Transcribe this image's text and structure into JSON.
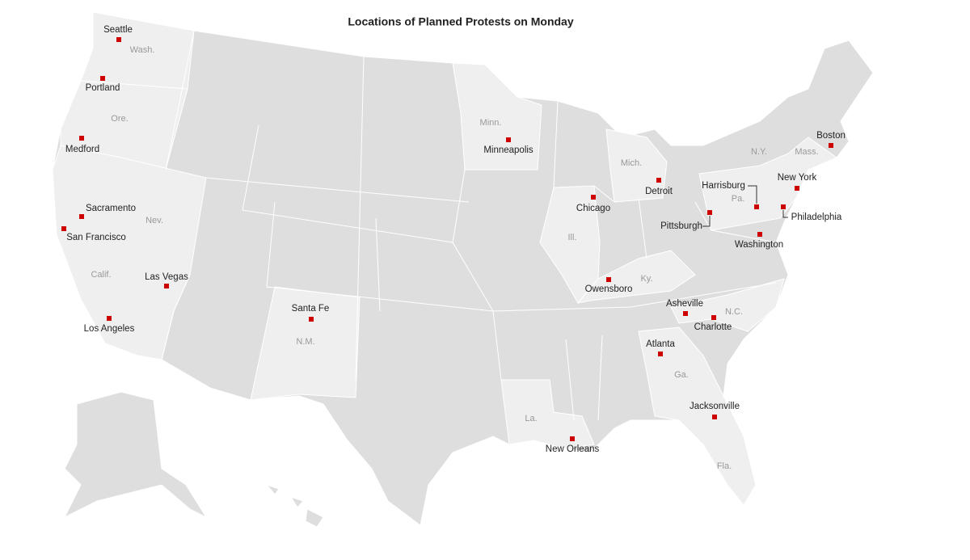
{
  "title": "Locations of Planned Protests on Monday",
  "cities": [
    "Seattle",
    "Portland",
    "Medford",
    "Sacramento",
    "San Francisco",
    "Las Vegas",
    "Los Angeles",
    "Santa Fe",
    "Minneapolis",
    "Chicago",
    "Detroit",
    "Owensboro",
    "Pittsburgh",
    "Harrisburg",
    "Washington",
    "Philadelphia",
    "New York",
    "Boston",
    "Asheville",
    "Charlotte",
    "Atlanta",
    "Jacksonville",
    "New Orleans"
  ],
  "states": [
    "Wash.",
    "Ore.",
    "Calif.",
    "Nev.",
    "N.M.",
    "Minn.",
    "Ill.",
    "Mich.",
    "Ky.",
    "Pa.",
    "N.Y.",
    "Mass.",
    "N.C.",
    "Ga.",
    "La.",
    "Fla."
  ]
}
